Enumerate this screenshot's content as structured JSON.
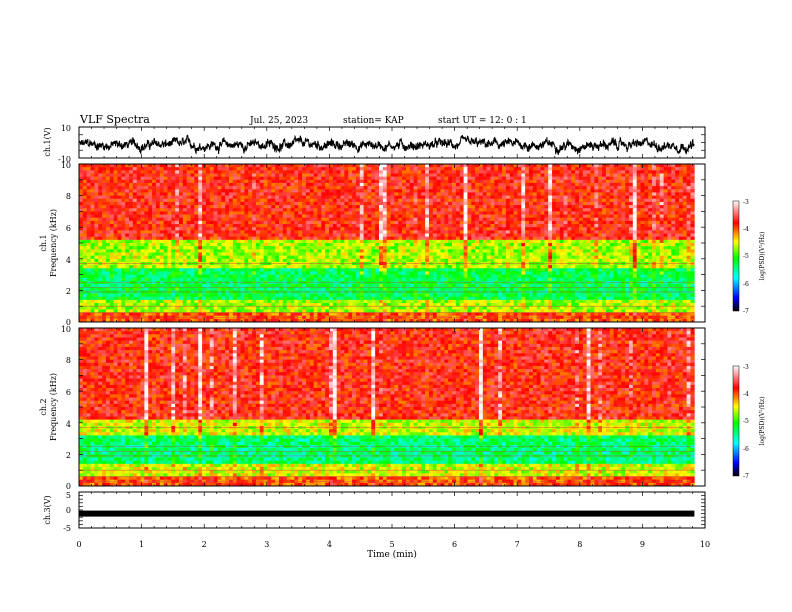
{
  "header": {
    "title": "VLF Spectra",
    "date": "Jul. 25, 2023",
    "station": "station= KAP",
    "start": "start UT =  12: 0  : 1"
  },
  "chart_data": [
    {
      "type": "line",
      "name": "ch1-waveform",
      "ylabel": "ch.1(V)",
      "ylim": [
        -10,
        10
      ],
      "yticks": [
        "10",
        "-10"
      ],
      "xlim": [
        0,
        10
      ],
      "x_end": 9.83,
      "baseline": -1.5,
      "amplitude": 4
    },
    {
      "type": "heatmap",
      "name": "ch1-spectrogram",
      "ylabel_top": "ch.1",
      "ylabel": "Frequency (kHz)",
      "ylim": [
        0,
        10
      ],
      "yticks": [
        "0",
        "2",
        "4",
        "6",
        "8",
        "10"
      ],
      "xlim": [
        0,
        10
      ],
      "x_end": 9.83,
      "colorbar": {
        "label": "log(PSD)(V²/Hz)",
        "range": [
          -7,
          -3
        ],
        "ticks": [
          "-3",
          "-4",
          "-5",
          "-6",
          "-7"
        ]
      },
      "bands_khz": [
        {
          "from": 0.0,
          "to": 0.6,
          "level": -4.0
        },
        {
          "from": 0.6,
          "to": 1.5,
          "level": -4.7
        },
        {
          "from": 1.5,
          "to": 3.5,
          "level": -5.3
        },
        {
          "from": 3.5,
          "to": 5.2,
          "level": -4.7
        },
        {
          "from": 5.2,
          "to": 10.0,
          "level": -3.8
        }
      ]
    },
    {
      "type": "heatmap",
      "name": "ch2-spectrogram",
      "ylabel_top": "ch.2",
      "ylabel": "Frequency (kHz)",
      "ylim": [
        0,
        10
      ],
      "yticks": [
        "0",
        "2",
        "4",
        "6",
        "8",
        "10"
      ],
      "xlim": [
        0,
        10
      ],
      "x_end": 9.83,
      "colorbar": {
        "label": "log(PSD)(V²/Hz)",
        "range": [
          -7,
          -3
        ],
        "ticks": [
          "-3",
          "-4",
          "-5",
          "-6",
          "-7"
        ]
      },
      "bands_khz": [
        {
          "from": 0.0,
          "to": 0.6,
          "level": -4.0
        },
        {
          "from": 0.6,
          "to": 1.5,
          "level": -4.6
        },
        {
          "from": 1.5,
          "to": 3.3,
          "level": -5.4
        },
        {
          "from": 3.3,
          "to": 4.2,
          "level": -4.6
        },
        {
          "from": 4.2,
          "to": 10.0,
          "level": -3.8
        }
      ]
    },
    {
      "type": "line",
      "name": "ch3-waveform",
      "ylabel": "ch.3(V)",
      "ylim": [
        -5,
        5
      ],
      "yticks": [
        "5",
        "0",
        "-5"
      ],
      "xlim": [
        0,
        10
      ],
      "x_end": 9.83,
      "baseline": -1,
      "amplitude": 0.4,
      "xlabel": "Time (min)",
      "xticks": [
        "0",
        "1",
        "2",
        "3",
        "4",
        "5",
        "6",
        "7",
        "8",
        "9",
        "10"
      ]
    }
  ],
  "colors": {
    "colormap": [
      "#000000",
      "#0000ff",
      "#00ffff",
      "#00ff00",
      "#ffff00",
      "#ff0000",
      "#ffffff"
    ],
    "trace": "#000000"
  }
}
